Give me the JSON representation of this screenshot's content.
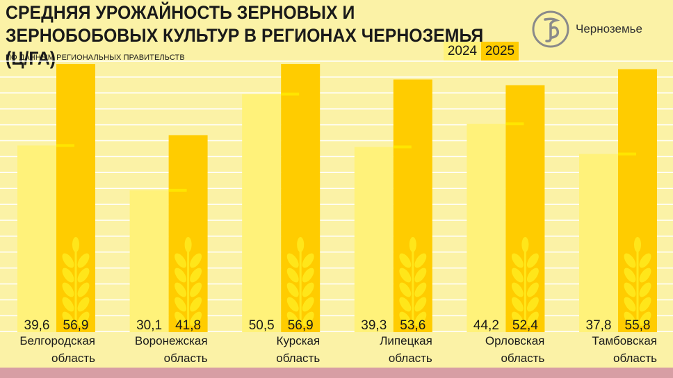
{
  "header": {
    "title": "СРЕДНЯЯ УРОЖАЙНОСТЬ ЗЕРНОВЫХ И ЗЕРНОБОБОВЫХ КУЛЬТУР В РЕГИОНАХ ЧЕРНОЗЕМЬЯ (Ц/ГА)",
    "subtitle": "ПО ДАННЫМ РЕГИОНАЛЬНЫХ ПРАВИТЕЛЬСТВ"
  },
  "logo": {
    "name": "Черноземье",
    "icon": "kommersant-k-logo-icon"
  },
  "colors": {
    "background": "#fbf2a6",
    "grid": "#ffffff",
    "bar_2024": "#fff27a",
    "bar_2025": "#ffcc00",
    "marker": "#ffe500",
    "wheat": "#ffe61a",
    "footer": "#d79ea4",
    "text": "#1a1a1a"
  },
  "chart_data": {
    "type": "bar",
    "title": "СРЕДНЯЯ УРОЖАЙНОСТЬ ЗЕРНОВЫХ И ЗЕРНОБОБОВЫХ КУЛЬТУР В РЕГИОНАХ ЧЕРНОЗЕМЬЯ (Ц/ГА)",
    "subtitle": "ПО ДАННЫМ РЕГИОНАЛЬНЫХ ПРАВИТЕЛЬСТВ",
    "categories": [
      [
        "Белгородская",
        "область"
      ],
      [
        "Воронежская",
        "область"
      ],
      [
        "Курская",
        "область"
      ],
      [
        "Липецкая",
        "область"
      ],
      [
        "Орловская",
        "область"
      ],
      [
        "Тамбовская",
        "область"
      ]
    ],
    "series": [
      {
        "name": "2024",
        "values": [
          39.6,
          30.1,
          50.5,
          39.3,
          44.2,
          37.8
        ],
        "labels": [
          "39,6",
          "30,1",
          "50,5",
          "39,3",
          "44,2",
          "37,8"
        ]
      },
      {
        "name": "2025",
        "values": [
          56.9,
          41.8,
          56.9,
          53.6,
          52.4,
          55.8
        ],
        "labels": [
          "56,9",
          "41,8",
          "56,9",
          "53,6",
          "52,4",
          "55,8"
        ]
      }
    ],
    "ylim": [
      0,
      57.5
    ],
    "grid": true,
    "legend": "top-right"
  }
}
